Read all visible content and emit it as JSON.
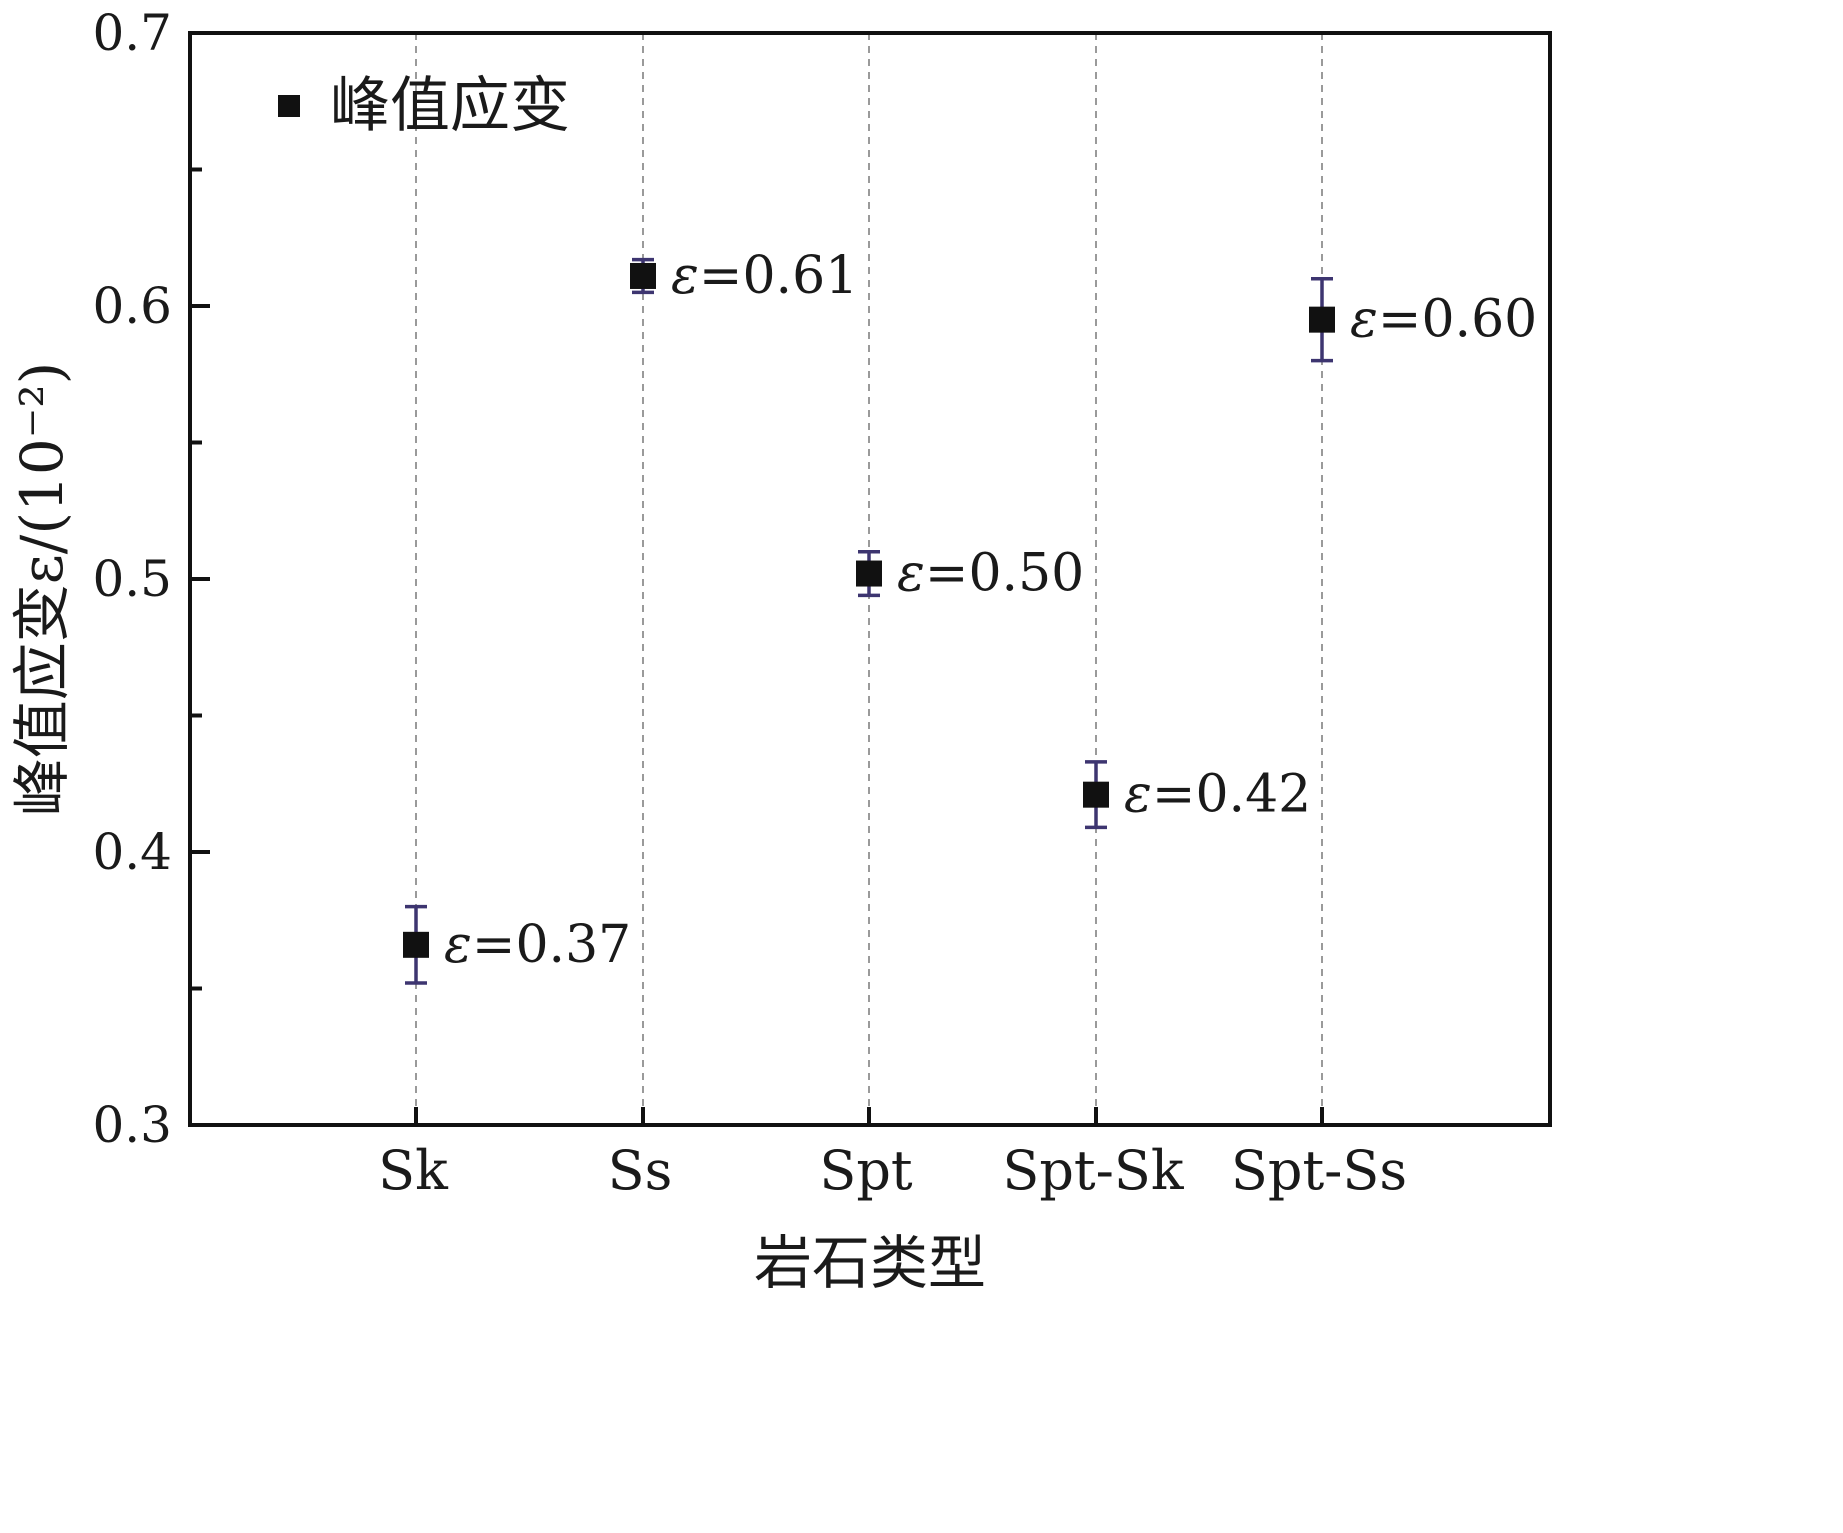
{
  "chart_data": {
    "type": "scatter",
    "xlabel": "岩石类型",
    "ylabel": "峰值应变ε/(10⁻²)",
    "categories": [
      "Sk",
      "Ss",
      "Spt",
      "Spt-Sk",
      "Spt-Ss"
    ],
    "series": [
      {
        "name": "峰值应变",
        "values": [
          0.366,
          0.611,
          0.502,
          0.421,
          0.595
        ],
        "error": [
          0.014,
          0.006,
          0.008,
          0.012,
          0.015
        ],
        "labels": [
          "ε=0.37",
          "ε=0.61",
          "ε=0.50",
          "ε=0.42",
          "ε=0.60"
        ]
      }
    ],
    "ylim": [
      0.3,
      0.7
    ],
    "yticks": [
      "0.3",
      "0.4",
      "0.5",
      "0.6",
      "0.7"
    ],
    "grid": "vertical dashed at categories",
    "legend": "top-left",
    "colors": {
      "marker": "#111111",
      "errorbar": "#3d3570",
      "gridline": "#9a9a9a",
      "axis": "#111111"
    }
  }
}
